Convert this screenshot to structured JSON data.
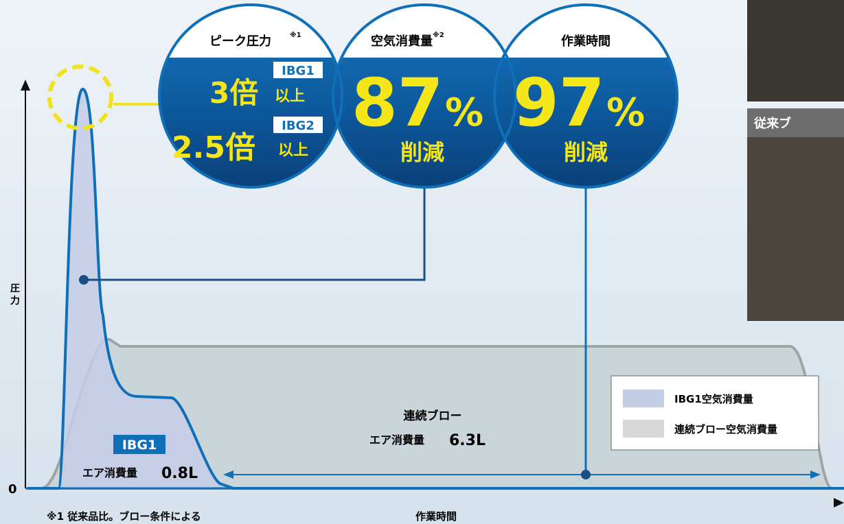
{
  "circles": [
    {
      "title": "ピーク圧力",
      "note": "※1",
      "rows": [
        {
          "tag": "IBG1",
          "value": "3倍",
          "suffix": "以上"
        },
        {
          "tag": "IBG2",
          "value": "2.5倍",
          "suffix": "以上"
        }
      ]
    },
    {
      "title": "空気消費量",
      "note": "※2",
      "value": "87",
      "unit": "%",
      "sub": "削減"
    },
    {
      "title": "作業時間",
      "value": "97",
      "unit": "%",
      "sub": "削減"
    }
  ],
  "axis": {
    "y_label": [
      "圧",
      "力"
    ],
    "zero": "0",
    "x_label": "作業時間"
  },
  "footnote": "※1 従来品比。ブロー条件による",
  "legend": [
    "IBG1空気消費量",
    "連続ブロー空気消費量"
  ],
  "ibg1_label": {
    "tag": "IBG1",
    "text": "エア消費量",
    "value": "0.8L"
  },
  "blow_label": {
    "title": "連続ブロー",
    "text": "エア消費量",
    "value": "6.3L"
  },
  "photo_caption": "従来ブ"
}
